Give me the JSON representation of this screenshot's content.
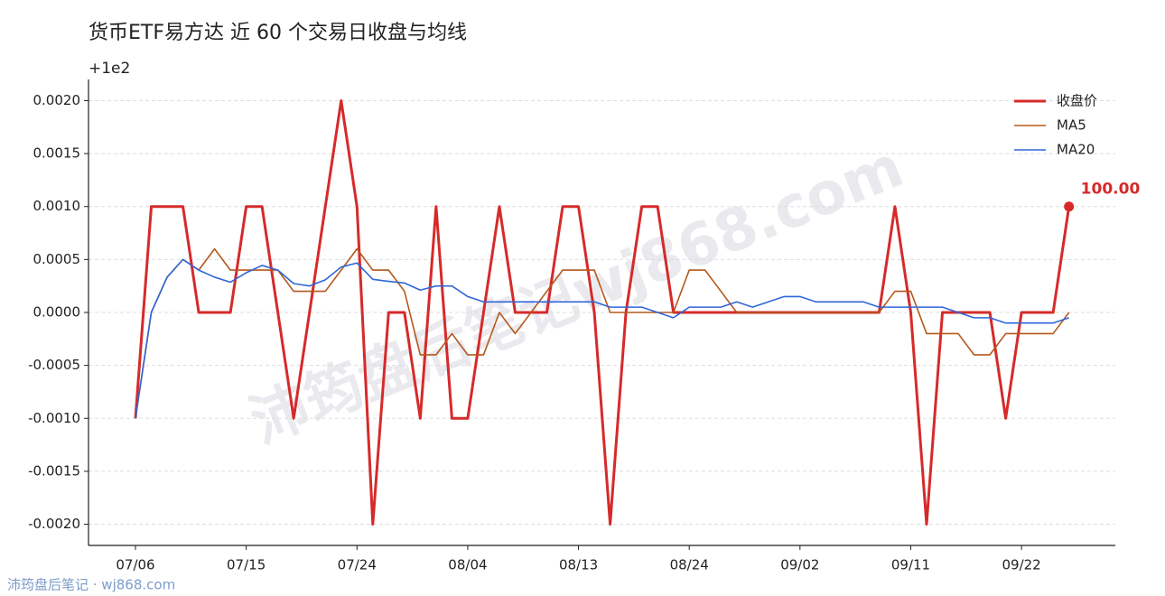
{
  "chart_data": {
    "type": "line",
    "title": "货币ETF易方达 近 60 个交易日收盘与均线",
    "y_offset_label": "+1e2",
    "watermark": "沛筠盘后笔记wj868.com",
    "footer": "沛筠盘后笔记 · wj868.com",
    "categories": [
      "07/06",
      null,
      null,
      null,
      null,
      null,
      null,
      "07/15",
      null,
      null,
      null,
      null,
      null,
      null,
      "07/24",
      null,
      null,
      null,
      null,
      null,
      null,
      "08/04",
      null,
      null,
      null,
      null,
      null,
      null,
      "08/13",
      null,
      null,
      null,
      null,
      null,
      null,
      "08/24",
      null,
      null,
      null,
      null,
      null,
      null,
      "09/02",
      null,
      null,
      null,
      null,
      null,
      null,
      "09/11",
      null,
      null,
      null,
      null,
      null,
      null,
      "09/22",
      null,
      null,
      null
    ],
    "ylim": [
      -0.0022,
      0.0022
    ],
    "yticks": [
      {
        "value": -0.002,
        "label": "-0.0020"
      },
      {
        "value": -0.0015,
        "label": "-0.0015"
      },
      {
        "value": -0.001,
        "label": "-0.0010"
      },
      {
        "value": -0.0005,
        "label": "-0.0005"
      },
      {
        "value": 0,
        "label": "0.0000"
      },
      {
        "value": 0.0005,
        "label": "0.0005"
      },
      {
        "value": 0.001,
        "label": "0.0010"
      },
      {
        "value": 0.0015,
        "label": "0.0015"
      },
      {
        "value": 0.002,
        "label": "0.0020"
      }
    ],
    "grid": true,
    "legend": "upper right",
    "series": [
      {
        "name": "收盘价",
        "color": "#d62a2a",
        "width": 3,
        "values": [
          -0.001,
          0.001,
          0.001,
          0.001,
          0,
          0,
          0,
          0.001,
          0.001,
          0,
          -0.001,
          0,
          0.001,
          0.002,
          0.001,
          -0.002,
          0,
          0,
          -0.001,
          0.001,
          -0.001,
          -0.001,
          0,
          0.001,
          0,
          0,
          0,
          0.001,
          0.001,
          0,
          -0.002,
          0,
          0.001,
          0.001,
          0,
          0,
          0,
          0,
          0,
          0,
          0,
          0,
          0,
          0,
          0,
          0,
          0,
          0,
          0.001,
          0,
          -0.002,
          0,
          0,
          0,
          0,
          -0.001,
          0,
          0,
          0,
          0.001
        ]
      },
      {
        "name": "MA5",
        "color": "#b5581c",
        "width": 1.6,
        "values": [
          -0.001,
          0,
          0.000333,
          0.0005,
          0.0004,
          0.0006,
          0.0004,
          0.0004,
          0.0004,
          0.0004,
          0.0002,
          0.0002,
          0.0002,
          0.0004,
          0.0006,
          0.0004,
          0.0004,
          0.0002,
          -0.0004,
          -0.0004,
          -0.0002,
          -0.0004,
          -0.0004,
          0,
          -0.0002,
          0,
          0.0002,
          0.0004,
          0.0004,
          0.0004,
          0,
          0,
          0,
          0,
          0,
          0.0004,
          0.0004,
          0.0002,
          0,
          0,
          0,
          0,
          0,
          0,
          0,
          0,
          0,
          0,
          0.0002,
          0.0002,
          -0.0002,
          -0.0002,
          -0.0002,
          -0.0004,
          -0.0004,
          -0.0002,
          -0.0002,
          -0.0002,
          -0.0002,
          0
        ]
      },
      {
        "name": "MA20",
        "color": "#2f66d8",
        "width": 1.6,
        "values": [
          -0.001,
          0,
          0.000333,
          0.0005,
          0.0004,
          0.000333,
          0.000286,
          0.000375,
          0.000444,
          0.0004,
          0.000273,
          0.00025,
          0.000308,
          0.000429,
          0.000467,
          0.000313,
          0.000294,
          0.000278,
          0.000211,
          0.00025,
          0.00025,
          0.00015,
          0.0001,
          0.0001,
          0.0001,
          0.0001,
          0.0001,
          0.0001,
          0.0001,
          0.0001,
          5e-05,
          5e-05,
          5e-05,
          0,
          -5e-05,
          5e-05,
          5e-05,
          5e-05,
          0.0001,
          5e-05,
          0.0001,
          0.00015,
          0.00015,
          0.0001,
          0.0001,
          0.0001,
          0.0001,
          5e-05,
          5e-05,
          5e-05,
          5e-05,
          5e-05,
          0,
          -5e-05,
          -5e-05,
          -0.0001,
          -0.0001,
          -0.0001,
          -0.0001,
          -5e-05
        ]
      }
    ],
    "annotation": "100.00"
  }
}
